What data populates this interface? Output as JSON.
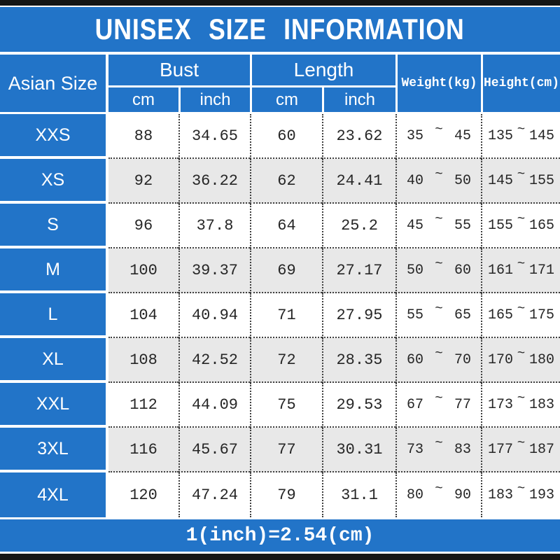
{
  "chart_data": {
    "type": "table",
    "title": "UNISEX SIZE INFORMATION",
    "header": {
      "size_column": "Asian Size",
      "bust_group": "Bust",
      "length_group": "Length",
      "bust_cm": "cm",
      "bust_inch": "inch",
      "length_cm": "cm",
      "length_inch": "inch",
      "weight": "Weight(kg)",
      "height": "Height(cm)"
    },
    "range_separator": "~",
    "rows": [
      {
        "size": "XXS",
        "bust_cm": "88",
        "bust_inch": "34.65",
        "length_cm": "60",
        "length_inch": "23.62",
        "weight_min": "35",
        "weight_max": "45",
        "height_min": "135",
        "height_max": "145"
      },
      {
        "size": "XS",
        "bust_cm": "92",
        "bust_inch": "36.22",
        "length_cm": "62",
        "length_inch": "24.41",
        "weight_min": "40",
        "weight_max": "50",
        "height_min": "145",
        "height_max": "155"
      },
      {
        "size": "S",
        "bust_cm": "96",
        "bust_inch": "37.8",
        "length_cm": "64",
        "length_inch": "25.2",
        "weight_min": "45",
        "weight_max": "55",
        "height_min": "155",
        "height_max": "165"
      },
      {
        "size": "M",
        "bust_cm": "100",
        "bust_inch": "39.37",
        "length_cm": "69",
        "length_inch": "27.17",
        "weight_min": "50",
        "weight_max": "60",
        "height_min": "161",
        "height_max": "171"
      },
      {
        "size": "L",
        "bust_cm": "104",
        "bust_inch": "40.94",
        "length_cm": "71",
        "length_inch": "27.95",
        "weight_min": "55",
        "weight_max": "65",
        "height_min": "165",
        "height_max": "175"
      },
      {
        "size": "XL",
        "bust_cm": "108",
        "bust_inch": "42.52",
        "length_cm": "72",
        "length_inch": "28.35",
        "weight_min": "60",
        "weight_max": "70",
        "height_min": "170",
        "height_max": "180"
      },
      {
        "size": "XXL",
        "bust_cm": "112",
        "bust_inch": "44.09",
        "length_cm": "75",
        "length_inch": "29.53",
        "weight_min": "67",
        "weight_max": "77",
        "height_min": "173",
        "height_max": "183"
      },
      {
        "size": "3XL",
        "bust_cm": "116",
        "bust_inch": "45.67",
        "length_cm": "77",
        "length_inch": "30.31",
        "weight_min": "73",
        "weight_max": "83",
        "height_min": "177",
        "height_max": "187"
      },
      {
        "size": "4XL",
        "bust_cm": "120",
        "bust_inch": "47.24",
        "length_cm": "79",
        "length_inch": "31.1",
        "weight_min": "80",
        "weight_max": "90",
        "height_min": "183",
        "height_max": "193"
      }
    ],
    "footer_note": "1(inch)=2.54(cm)",
    "layout": {
      "row_striping": "alternating white and gray",
      "grid_lines": "dotted black between data cells, solid white between blue cells"
    }
  },
  "colors": {
    "header_blue": "#2274c8",
    "alt_row_gray": "#e8e8e8",
    "frame_bar_black": "#151515",
    "data_text": "#262626"
  }
}
